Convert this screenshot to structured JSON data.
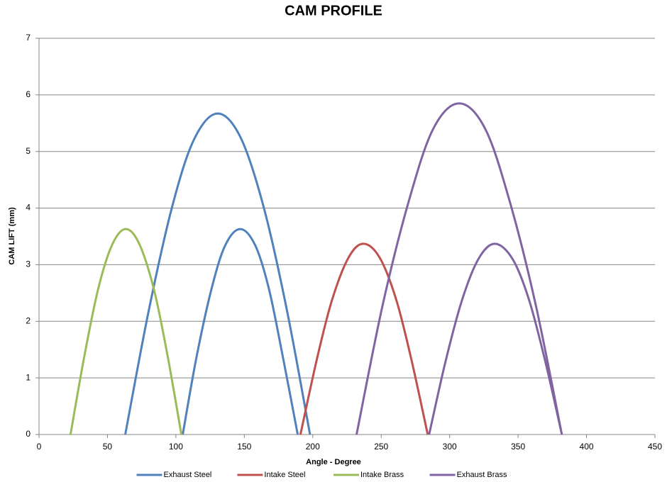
{
  "chart_data": {
    "type": "line",
    "title": "CAM PROFILE",
    "x_label": "Angle - Degree",
    "y_label": "CAM LIFT (mm)",
    "xlim": [
      0,
      450
    ],
    "xticks": [
      0,
      50,
      100,
      150,
      200,
      250,
      300,
      350,
      400,
      450
    ],
    "ylim": [
      0,
      7
    ],
    "yticks": [
      0,
      1,
      2,
      3,
      4,
      5,
      6,
      7
    ],
    "grid": true,
    "legend": "bottom",
    "series": [
      {
        "name": "Exhaust Steel",
        "color": "#4f81bd",
        "x": [
          63,
          80,
          97,
          113,
          130,
          147,
          164,
          181,
          198,
          null,
          105,
          115,
          126,
          136,
          147,
          158,
          168,
          178,
          189
        ],
        "values": [
          0,
          2.17,
          4.0,
          5.2,
          5.67,
          5.26,
          4.03,
          2.21,
          0,
          null,
          0,
          1.36,
          2.57,
          3.34,
          3.63,
          3.34,
          2.57,
          1.39,
          0
        ]
      },
      {
        "name": "Intake Steel",
        "color": "#c0504d",
        "x": [
          191,
          203,
          214,
          226,
          237,
          249,
          261,
          272,
          284
        ],
        "values": [
          0,
          1.33,
          2.37,
          3.12,
          3.37,
          3.12,
          2.38,
          1.33,
          0
        ]
      },
      {
        "name": "Intake Brass",
        "color": "#9bbb59",
        "x": [
          23,
          33,
          43,
          53,
          63,
          73,
          84,
          94,
          104
        ],
        "values": [
          0,
          1.37,
          2.55,
          3.33,
          3.63,
          3.38,
          2.56,
          1.38,
          0
        ]
      },
      {
        "name": "Exhaust Brass",
        "color": "#8064a2",
        "x": [
          232,
          251,
          270,
          288,
          307,
          326,
          344,
          363,
          382,
          null,
          285,
          297,
          309,
          321,
          333,
          346,
          358,
          370,
          382
        ],
        "values": [
          0,
          2.28,
          4.11,
          5.4,
          5.85,
          5.4,
          4.11,
          2.28,
          0,
          null,
          0,
          1.29,
          2.37,
          3.1,
          3.37,
          3.1,
          2.38,
          1.28,
          0
        ]
      }
    ]
  }
}
